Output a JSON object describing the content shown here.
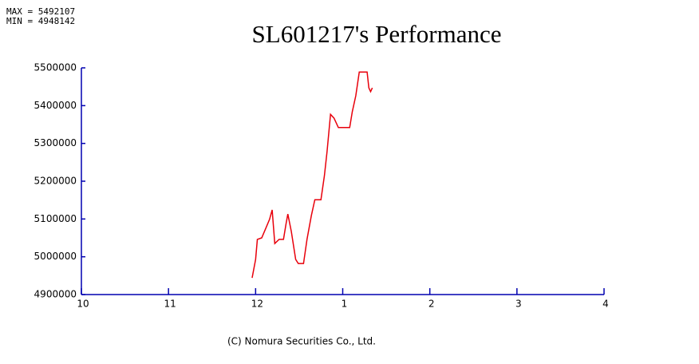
{
  "chart_data": {
    "type": "line",
    "title": "SL601217's Performance",
    "annotations": [
      "MAX = 5492107",
      "MIN = 4948142"
    ],
    "footer": "(C) Nomura Securities Co., Ltd.",
    "x": [
      1.96,
      2.0,
      2.02,
      2.07,
      2.12,
      2.16,
      2.19,
      2.22,
      2.27,
      2.32,
      2.35,
      2.37,
      2.41,
      2.46,
      2.49,
      2.55,
      2.59,
      2.64,
      2.68,
      2.75,
      2.79,
      2.82,
      2.86,
      2.9,
      2.95,
      3.08,
      3.11,
      3.15,
      3.19,
      3.28,
      3.3,
      3.32,
      3.34
    ],
    "series": [
      {
        "name": "SL601217",
        "color": "#e8000b",
        "values": [
          4944000,
          4993000,
          5046000,
          5050000,
          5077000,
          5099000,
          5124000,
          5035000,
          5046000,
          5046000,
          5088000,
          5113000,
          5067000,
          4993000,
          4982000,
          4982000,
          5046000,
          5109000,
          5151000,
          5151000,
          5215000,
          5278000,
          5377000,
          5367000,
          5342000,
          5342000,
          5384000,
          5426000,
          5489000,
          5489000,
          5447000,
          5437000,
          5447000
        ]
      }
    ],
    "axis_color": "#0000b0",
    "xlim": [
      0,
      6
    ],
    "xticks": [
      {
        "value": 0,
        "label": "10"
      },
      {
        "value": 1,
        "label": "11"
      },
      {
        "value": 2,
        "label": "12"
      },
      {
        "value": 3,
        "label": "1"
      },
      {
        "value": 4,
        "label": "2"
      },
      {
        "value": 5,
        "label": "3"
      },
      {
        "value": 6,
        "label": "4"
      }
    ],
    "ylim": [
      4900000,
      5500000
    ],
    "yticks": [
      4900000,
      5000000,
      5100000,
      5200000,
      5300000,
      5400000,
      5500000
    ]
  }
}
